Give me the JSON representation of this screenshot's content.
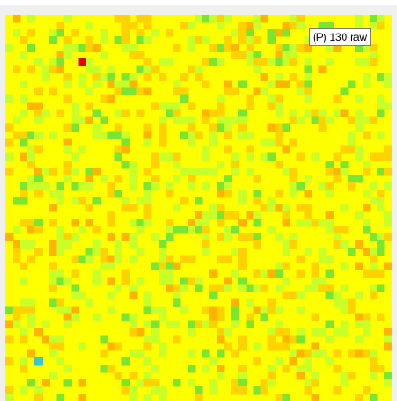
{
  "overlay": {
    "label": "(P) 130 raw"
  },
  "heatmap": {
    "grid_size": 53,
    "colors": {
      "base": "#ffff00",
      "orange": "#ffd200",
      "amber": "#ffb400",
      "light_green": "#c8ff28",
      "green": "#78e632",
      "red": "#e60000",
      "cyan": "#3cc8c8"
    }
  }
}
